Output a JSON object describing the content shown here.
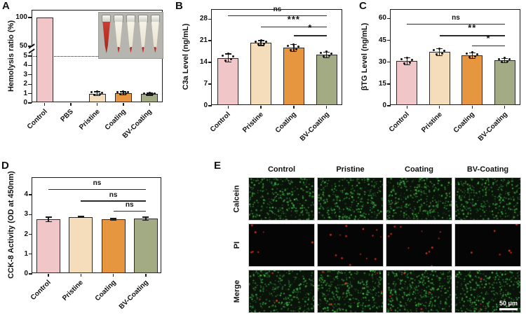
{
  "panels": {
    "A": {
      "label": "A"
    },
    "B": {
      "label": "B"
    },
    "C": {
      "label": "C"
    },
    "D": {
      "label": "D"
    },
    "E": {
      "label": "E",
      "columns": [
        "Control",
        "Pristine",
        "Coating",
        "BV-Coating"
      ],
      "rows": [
        "Calcein",
        "PI",
        "Merge"
      ],
      "scale_bar_label": "50 μm",
      "row_render": [
        {
          "name": "Calcein",
          "bg": "#0a130a",
          "green": 330,
          "red": [
            0,
            0,
            0,
            0
          ]
        },
        {
          "name": "PI",
          "bg": "#050505",
          "green": 0,
          "red": [
            7,
            14,
            12,
            6
          ]
        },
        {
          "name": "Merge",
          "bg": "#0a130a",
          "green": 330,
          "red": [
            3,
            6,
            6,
            3
          ]
        }
      ],
      "dot_colors": {
        "green": "#4caf50",
        "red": "#e53935"
      }
    }
  },
  "group_colors": {
    "Control": "#f1c6c9",
    "Pristine": "#f5dcba",
    "Coating": "#e6963f",
    "BV-Coating": "#a3ab84"
  },
  "chart_data": [
    {
      "id": "A",
      "type": "bar",
      "ylabel": "Hemolysis ratio (%)",
      "categories": [
        "Control",
        "PBS",
        "Pristine",
        "Coating",
        "BV-Coating"
      ],
      "values": [
        100,
        0,
        1.0,
        1.05,
        0.95
      ],
      "errors": [
        0,
        0,
        0.25,
        0.2,
        0.15
      ],
      "bar_colors": [
        "#f1c6c9",
        null,
        "#f5dcba",
        "#e6963f",
        "#a3ab84"
      ],
      "axis_break": {
        "lower_range": [
          0,
          5
        ],
        "upper_range": [
          50,
          100
        ],
        "lower_ticks": [
          0,
          1,
          2,
          3,
          4,
          5
        ],
        "upper_ticks": [
          50,
          100
        ]
      },
      "dashed_threshold_y": 5,
      "points": true,
      "inset": {
        "tube_count": 5,
        "full_red_tube_index": 0
      }
    },
    {
      "id": "B",
      "type": "bar",
      "ylabel": "C3a Level (ng/mL)",
      "categories": [
        "Control",
        "Pristine",
        "Coating",
        "BV-Coating"
      ],
      "values": [
        15.5,
        20.3,
        18.7,
        16.5
      ],
      "errors": [
        1.4,
        0.9,
        1.2,
        1.0
      ],
      "yticks": [
        0,
        7,
        14,
        21,
        28
      ],
      "ylim": [
        0,
        31
      ],
      "bar_colors": [
        "#f1c6c9",
        "#f5dcba",
        "#e6963f",
        "#a3ab84"
      ],
      "points": true,
      "significance": [
        {
          "from": 0,
          "to": 3,
          "label": "ns",
          "y": 29.2
        },
        {
          "from": 1,
          "to": 3,
          "label": "***",
          "y": 25.6
        },
        {
          "from": 2,
          "to": 3,
          "label": "*",
          "y": 22.8
        }
      ]
    },
    {
      "id": "C",
      "type": "bar",
      "ylabel": "βTG Level (ng/mL)",
      "categories": [
        "Control",
        "Pristine",
        "Coating",
        "BV-Coating"
      ],
      "values": [
        30.7,
        37.0,
        34.6,
        31.2
      ],
      "errors": [
        2.6,
        2.6,
        2.2,
        1.8
      ],
      "yticks": [
        0,
        15,
        30,
        45,
        60
      ],
      "ylim": [
        0,
        66
      ],
      "bar_colors": [
        "#f1c6c9",
        "#f5dcba",
        "#e6963f",
        "#a3ab84"
      ],
      "points": true,
      "significance": [
        {
          "from": 0,
          "to": 3,
          "label": "ns",
          "y": 56.5
        },
        {
          "from": 1,
          "to": 3,
          "label": "**",
          "y": 48.5
        },
        {
          "from": 2,
          "to": 3,
          "label": "*",
          "y": 41.5
        }
      ]
    },
    {
      "id": "D",
      "type": "bar",
      "ylabel": "CCK-8 Activity (OD at 450nm)",
      "categories": [
        "Control",
        "Pristine",
        "Coating",
        "BV-Coating"
      ],
      "values": [
        2.76,
        2.88,
        2.76,
        2.79
      ],
      "errors": [
        0.13,
        0.05,
        0.06,
        0.1
      ],
      "yticks": [
        0,
        1,
        2,
        3,
        4
      ],
      "ylim": [
        0,
        4.85
      ],
      "bar_colors": [
        "#f1c6c9",
        "#f5dcba",
        "#e6963f",
        "#a3ab84"
      ],
      "points": false,
      "significance": [
        {
          "from": 0,
          "to": 3,
          "label": "ns",
          "y": 4.3
        },
        {
          "from": 1,
          "to": 3,
          "label": "ns",
          "y": 3.7
        },
        {
          "from": 2,
          "to": 3,
          "label": "ns",
          "y": 3.2
        }
      ]
    }
  ]
}
